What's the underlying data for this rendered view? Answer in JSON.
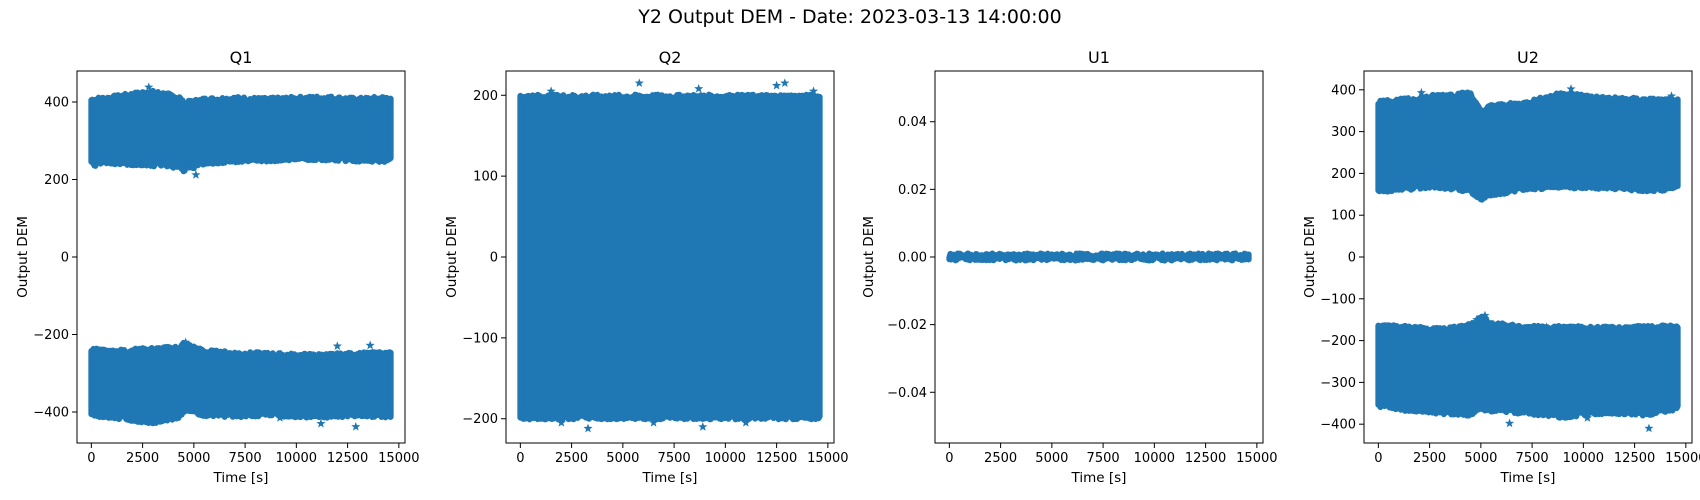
{
  "figure": {
    "suptitle": "Y2 Output DEM - Date: 2023-03-13 14:00:00"
  },
  "colors": {
    "series": "#1f77b4",
    "axes": "#000000",
    "background": "#ffffff"
  },
  "chart_data": [
    {
      "type": "scatter",
      "title": "Q1",
      "xlabel": "Time [s]",
      "ylabel": "Output DEM",
      "marker": "star",
      "grid": false,
      "xlim": [
        -700,
        15300
      ],
      "ylim": [
        -480,
        480
      ],
      "xticks": [
        0,
        2500,
        5000,
        7500,
        10000,
        12500,
        15000
      ],
      "xticklabels": [
        "0",
        "2500",
        "5000",
        "7500",
        "10000",
        "12500",
        "15000"
      ],
      "yticks": [
        -400,
        -200,
        0,
        200,
        400
      ],
      "yticklabels": [
        "−400",
        "−200",
        "0",
        "200",
        "400"
      ],
      "x": [
        0,
        14600
      ],
      "bands": [
        {
          "x": [
            0,
            1000,
            2000,
            2800,
            3500,
            4300,
            4500,
            5500,
            7000,
            8500,
            10000,
            11500,
            13000,
            14600
          ],
          "lower": [
            240,
            245,
            242,
            240,
            238,
            235,
            225,
            245,
            250,
            252,
            255,
            255,
            252,
            250
          ],
          "upper": [
            405,
            410,
            418,
            425,
            420,
            410,
            395,
            405,
            408,
            405,
            408,
            410,
            405,
            410
          ]
        },
        {
          "x": [
            0,
            1000,
            2000,
            2800,
            3500,
            4300,
            4500,
            5500,
            7000,
            8500,
            10000,
            11500,
            13000,
            14600
          ],
          "lower": [
            -405,
            -410,
            -418,
            -425,
            -420,
            -410,
            -395,
            -405,
            -408,
            -405,
            -408,
            -410,
            -405,
            -410
          ],
          "upper": [
            -240,
            -245,
            -242,
            -240,
            -238,
            -235,
            -225,
            -245,
            -250,
            -252,
            -255,
            -255,
            -252,
            -250
          ]
        }
      ],
      "outliers": [
        [
          2800,
          438
        ],
        [
          5100,
          212
        ],
        [
          4700,
          240
        ],
        [
          1200,
          255
        ],
        [
          12800,
          265
        ],
        [
          12900,
          -438
        ],
        [
          11200,
          -430
        ],
        [
          9200,
          -415
        ],
        [
          4600,
          -220
        ],
        [
          13600,
          -228
        ],
        [
          12000,
          -230
        ]
      ]
    },
    {
      "type": "scatter",
      "title": "Q2",
      "xlabel": "Time [s]",
      "ylabel": "Output DEM",
      "marker": "star",
      "grid": false,
      "xlim": [
        -700,
        15300
      ],
      "ylim": [
        -230,
        230
      ],
      "xticks": [
        0,
        2500,
        5000,
        7500,
        10000,
        12500,
        15000
      ],
      "xticklabels": [
        "0",
        "2500",
        "5000",
        "7500",
        "10000",
        "12500",
        "15000"
      ],
      "yticks": [
        -200,
        -100,
        0,
        100,
        200
      ],
      "yticklabels": [
        "−200",
        "−100",
        "0",
        "100",
        "200"
      ],
      "x": [
        0,
        14600
      ],
      "bands": [
        {
          "x": [
            0,
            14600
          ],
          "lower": [
            -198,
            -198
          ],
          "upper": [
            198,
            198
          ]
        }
      ],
      "outliers": [
        [
          5800,
          215
        ],
        [
          12900,
          215
        ],
        [
          12500,
          212
        ],
        [
          8700,
          208
        ],
        [
          1500,
          205
        ],
        [
          14300,
          205
        ],
        [
          3300,
          -212
        ],
        [
          8900,
          -210
        ],
        [
          6500,
          -205
        ],
        [
          2000,
          -205
        ],
        [
          11000,
          -205
        ]
      ]
    },
    {
      "type": "scatter",
      "title": "U1",
      "xlabel": "Time [s]",
      "ylabel": "Output DEM",
      "marker": "star",
      "grid": false,
      "xlim": [
        -700,
        15300
      ],
      "ylim": [
        -0.055,
        0.055
      ],
      "xticks": [
        0,
        2500,
        5000,
        7500,
        10000,
        12500,
        15000
      ],
      "xticklabels": [
        "0",
        "2500",
        "5000",
        "7500",
        "10000",
        "12500",
        "15000"
      ],
      "yticks": [
        -0.04,
        -0.02,
        0.0,
        0.02,
        0.04
      ],
      "yticklabels": [
        "−0.04",
        "−0.02",
        "0.00",
        "0.02",
        "0.04"
      ],
      "x": [
        0,
        14600
      ],
      "bands": [
        {
          "x": [
            0,
            14600
          ],
          "lower": [
            -0.0004,
            -0.0004
          ],
          "upper": [
            0.0004,
            0.0004
          ]
        }
      ],
      "outliers": []
    },
    {
      "type": "scatter",
      "title": "U2",
      "xlabel": "Time [s]",
      "ylabel": "Output DEM",
      "marker": "star",
      "grid": false,
      "xlim": [
        -700,
        15300
      ],
      "ylim": [
        -445,
        445
      ],
      "xticks": [
        0,
        2500,
        5000,
        7500,
        10000,
        12500,
        15000
      ],
      "xticklabels": [
        "0",
        "2500",
        "5000",
        "7500",
        "10000",
        "12500",
        "15000"
      ],
      "yticks": [
        -400,
        -300,
        -200,
        -100,
        0,
        100,
        200,
        300,
        400
      ],
      "yticklabels": [
        "−400",
        "−300",
        "−200",
        "−100",
        "0",
        "100",
        "200",
        "300",
        "400"
      ],
      "x": [
        0,
        14600
      ],
      "bands": [
        {
          "x": [
            0,
            1500,
            3000,
            4500,
            5000,
            5500,
            7000,
            9000,
            11000,
            13000,
            14600
          ],
          "lower": [
            160,
            165,
            170,
            160,
            140,
            150,
            165,
            170,
            168,
            162,
            165
          ],
          "upper": [
            370,
            375,
            385,
            390,
            345,
            360,
            365,
            390,
            378,
            375,
            372
          ]
        },
        {
          "x": [
            0,
            1500,
            3000,
            4500,
            5000,
            5500,
            7000,
            9000,
            11000,
            13000,
            14600
          ],
          "lower": [
            -355,
            -365,
            -370,
            -375,
            -360,
            -365,
            -370,
            -380,
            -370,
            -375,
            -360
          ],
          "upper": [
            -165,
            -170,
            -175,
            -165,
            -145,
            -160,
            -170,
            -170,
            -172,
            -170,
            -168
          ]
        }
      ],
      "outliers": [
        [
          5100,
          345
        ],
        [
          9400,
          402
        ],
        [
          6400,
          -398
        ],
        [
          13200,
          -410
        ],
        [
          2100,
          393
        ],
        [
          14300,
          385
        ],
        [
          5200,
          -140
        ],
        [
          4800,
          -150
        ],
        [
          8200,
          -168
        ],
        [
          10200,
          -385
        ]
      ]
    }
  ]
}
